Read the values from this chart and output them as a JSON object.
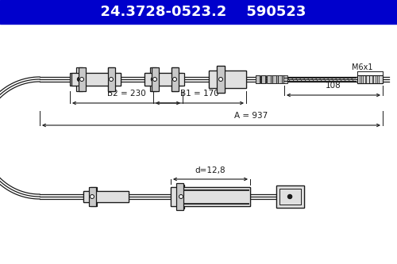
{
  "title1": "24.3728-0523.2",
  "title2": "590523",
  "header_bg": "#0000CC",
  "header_text_color": "#FFFFFF",
  "bg_color": "#FFFFFF",
  "line_color": "#1a1a1a",
  "label_M6x1": "M6x1",
  "label_108": "108",
  "label_B1": "B1 = 170",
  "label_B2": "B2 = 230",
  "label_A": "A = 937",
  "label_d": "d=12,8"
}
